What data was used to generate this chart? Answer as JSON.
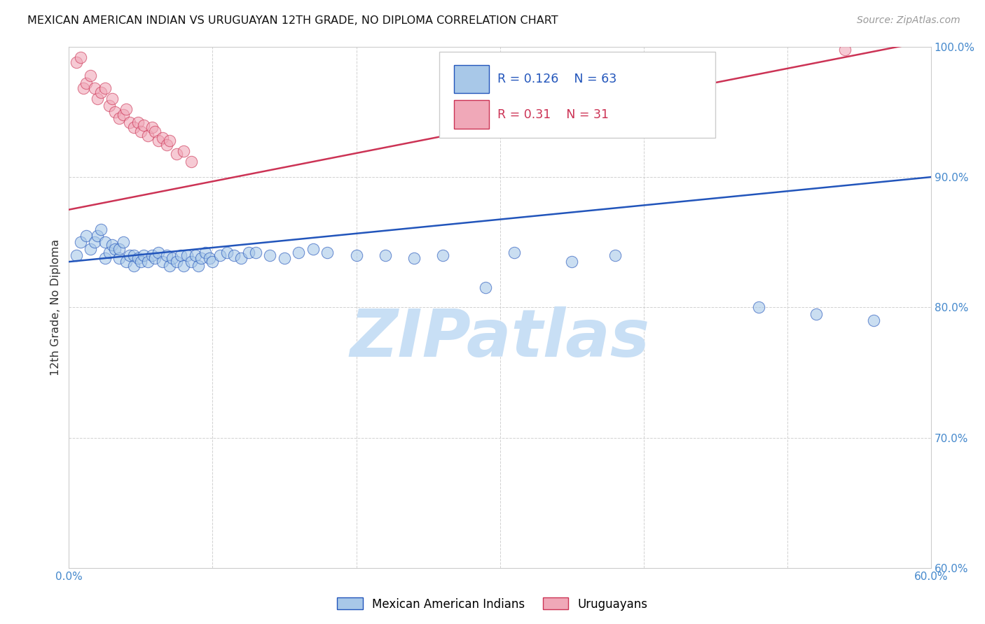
{
  "title": "MEXICAN AMERICAN INDIAN VS URUGUAYAN 12TH GRADE, NO DIPLOMA CORRELATION CHART",
  "source": "Source: ZipAtlas.com",
  "ylabel": "12th Grade, No Diploma",
  "xlim": [
    0.0,
    0.6
  ],
  "ylim": [
    0.6,
    1.0
  ],
  "xticks": [
    0.0,
    0.1,
    0.2,
    0.3,
    0.4,
    0.5,
    0.6
  ],
  "yticks": [
    0.6,
    0.7,
    0.8,
    0.9,
    1.0
  ],
  "xtick_labels": [
    "0.0%",
    "",
    "",
    "",
    "",
    "",
    "60.0%"
  ],
  "ytick_labels": [
    "60.0%",
    "70.0%",
    "80.0%",
    "90.0%",
    "100.0%"
  ],
  "legend_label1": "Mexican American Indians",
  "legend_label2": "Uruguayans",
  "R1": 0.126,
  "N1": 63,
  "R2": 0.31,
  "N2": 31,
  "color1": "#a8c8e8",
  "color2": "#f0a8b8",
  "line_color1": "#2255bb",
  "line_color2": "#cc3355",
  "tick_color": "#4488cc",
  "watermark_color": "#c8dff5",
  "blue_x": [
    0.005,
    0.008,
    0.012,
    0.015,
    0.018,
    0.02,
    0.022,
    0.025,
    0.025,
    0.028,
    0.03,
    0.032,
    0.035,
    0.035,
    0.038,
    0.04,
    0.042,
    0.045,
    0.045,
    0.048,
    0.05,
    0.052,
    0.055,
    0.058,
    0.06,
    0.062,
    0.065,
    0.068,
    0.07,
    0.072,
    0.075,
    0.078,
    0.08,
    0.082,
    0.085,
    0.088,
    0.09,
    0.092,
    0.095,
    0.098,
    0.1,
    0.105,
    0.11,
    0.115,
    0.12,
    0.125,
    0.13,
    0.14,
    0.15,
    0.16,
    0.17,
    0.18,
    0.2,
    0.22,
    0.24,
    0.26,
    0.29,
    0.31,
    0.35,
    0.38,
    0.48,
    0.52,
    0.56
  ],
  "blue_y": [
    0.84,
    0.85,
    0.855,
    0.845,
    0.85,
    0.855,
    0.86,
    0.838,
    0.85,
    0.842,
    0.848,
    0.845,
    0.838,
    0.845,
    0.85,
    0.835,
    0.84,
    0.832,
    0.84,
    0.838,
    0.835,
    0.84,
    0.835,
    0.84,
    0.838,
    0.842,
    0.835,
    0.84,
    0.832,
    0.838,
    0.835,
    0.84,
    0.832,
    0.84,
    0.835,
    0.84,
    0.832,
    0.838,
    0.842,
    0.838,
    0.835,
    0.84,
    0.842,
    0.84,
    0.838,
    0.842,
    0.842,
    0.84,
    0.838,
    0.842,
    0.845,
    0.842,
    0.84,
    0.84,
    0.838,
    0.84,
    0.815,
    0.842,
    0.835,
    0.84,
    0.8,
    0.795,
    0.79
  ],
  "pink_x": [
    0.005,
    0.008,
    0.01,
    0.012,
    0.015,
    0.018,
    0.02,
    0.022,
    0.025,
    0.028,
    0.03,
    0.032,
    0.035,
    0.038,
    0.04,
    0.042,
    0.045,
    0.048,
    0.05,
    0.052,
    0.055,
    0.058,
    0.06,
    0.062,
    0.065,
    0.068,
    0.07,
    0.075,
    0.08,
    0.085,
    0.54
  ],
  "pink_y": [
    0.988,
    0.992,
    0.968,
    0.972,
    0.978,
    0.968,
    0.96,
    0.965,
    0.968,
    0.955,
    0.96,
    0.95,
    0.945,
    0.948,
    0.952,
    0.942,
    0.938,
    0.942,
    0.935,
    0.94,
    0.932,
    0.938,
    0.935,
    0.928,
    0.93,
    0.925,
    0.928,
    0.918,
    0.92,
    0.912,
    0.998
  ]
}
